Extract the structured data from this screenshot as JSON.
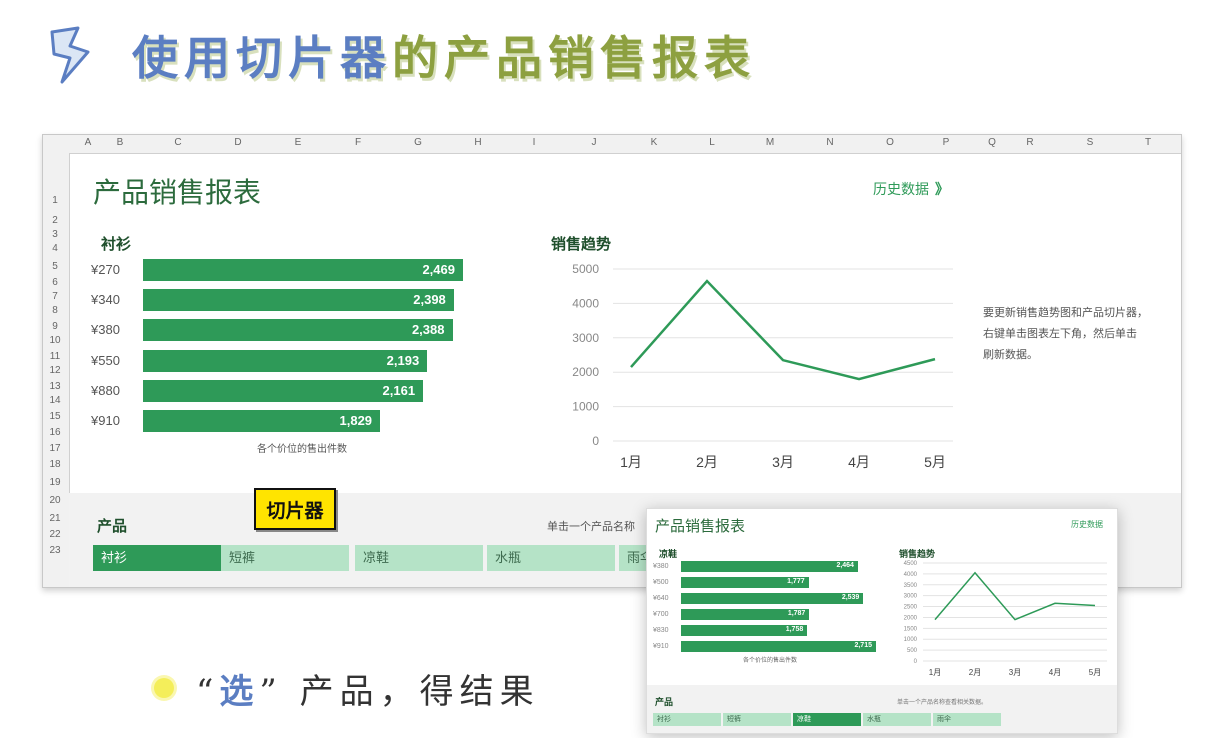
{
  "slide": {
    "title_main": "使用切片器",
    "title_rest": "的产品销售报表",
    "caption_open": "“",
    "caption_word": "选",
    "caption_close": "”",
    "caption_rest": "产品，得结果",
    "icons": {
      "bolt": "lightning-bolt-icon",
      "bullet": "yellow-dot-bullet-icon"
    },
    "colors": {
      "title": "#8da040",
      "title_accent": "#5b7ec2",
      "green": "#2e9a58",
      "light_green": "#b5e3c7",
      "callout": "#ffe400"
    }
  },
  "sheet": {
    "columns": [
      "A",
      "B",
      "C",
      "D",
      "E",
      "F",
      "G",
      "H",
      "I",
      "J",
      "K",
      "L",
      "M",
      "N",
      "O",
      "P",
      "Q",
      "R",
      "S",
      "T"
    ],
    "rows": [
      "1",
      "2",
      "3",
      "4",
      "5",
      "6",
      "7",
      "8",
      "9",
      "10",
      "11",
      "12",
      "13",
      "14",
      "15",
      "16",
      "17",
      "18",
      "19",
      "20",
      "21",
      "22",
      "23"
    ],
    "report_title": "产品销售报表",
    "history_link": "历史数据",
    "history_arrow": "》",
    "bar_section": {
      "title": "衬衫",
      "caption": "各个价位的售出件数"
    },
    "line_section": {
      "title": "销售趋势"
    },
    "note": [
      "要更新销售趋势图和产品切片器，",
      "右键单击图表左下角，然后单击",
      "刷新数据。"
    ],
    "slicer": {
      "title": "产品",
      "hint": "单击一个产品名称",
      "items": [
        {
          "label": "衬衫",
          "selected": true
        },
        {
          "label": "短裤",
          "selected": false
        },
        {
          "label": "凉鞋",
          "selected": false
        },
        {
          "label": "水瓶",
          "selected": false
        },
        {
          "label": "雨伞",
          "selected": false
        }
      ]
    },
    "callout": "切片器"
  },
  "thumbnail": {
    "report_title": "产品销售报表",
    "history_link": "历史数据",
    "bar_title": "凉鞋",
    "bar_caption": "各个价位的售出件数",
    "line_title": "销售趋势",
    "slicer_title": "产品",
    "slicer_hint": "单击一个产品名称查看相关数据。",
    "slicer_items": [
      {
        "label": "衬衫",
        "selected": false
      },
      {
        "label": "短裤",
        "selected": false
      },
      {
        "label": "凉鞋",
        "selected": true
      },
      {
        "label": "水瓶",
        "selected": false
      },
      {
        "label": "雨伞",
        "selected": false
      }
    ]
  },
  "chart_data": [
    {
      "type": "bar",
      "orientation": "horizontal",
      "title": "衬衫",
      "xlabel": "各个价位的售出件数",
      "categories": [
        "¥270",
        "¥340",
        "¥380",
        "¥550",
        "¥880",
        "¥910"
      ],
      "values": [
        2469,
        2398,
        2388,
        2193,
        2161,
        1829
      ],
      "labels": [
        "2,469",
        "2,398",
        "2,388",
        "2,193",
        "2,161",
        "1,829"
      ]
    },
    {
      "type": "line",
      "title": "销售趋势",
      "x": [
        "1月",
        "2月",
        "3月",
        "4月",
        "5月"
      ],
      "values": [
        2150,
        4650,
        2350,
        1800,
        2380
      ],
      "ylim": [
        0,
        5000
      ],
      "yticks": [
        "5000",
        "4000",
        "3000",
        "2000",
        "1000",
        "0"
      ],
      "grid": true
    },
    {
      "type": "bar",
      "orientation": "horizontal",
      "title": "凉鞋",
      "xlabel": "各个价位的售出件数",
      "categories": [
        "¥380",
        "¥500",
        "¥640",
        "¥700",
        "¥830",
        "¥910"
      ],
      "values": [
        2464,
        1777,
        2539,
        1787,
        1758,
        2715
      ],
      "labels": [
        "2,464",
        "1,777",
        "2,539",
        "1,787",
        "1,758",
        "2,715"
      ]
    },
    {
      "type": "line",
      "title": "销售趋势",
      "x": [
        "1月",
        "2月",
        "3月",
        "4月",
        "5月"
      ],
      "values": [
        1900,
        4050,
        1900,
        2650,
        2550
      ],
      "ylim": [
        0,
        4500
      ],
      "yticks": [
        "4500",
        "4000",
        "3500",
        "3000",
        "2500",
        "2000",
        "1500",
        "1000",
        "500",
        "0"
      ],
      "grid": true
    }
  ]
}
